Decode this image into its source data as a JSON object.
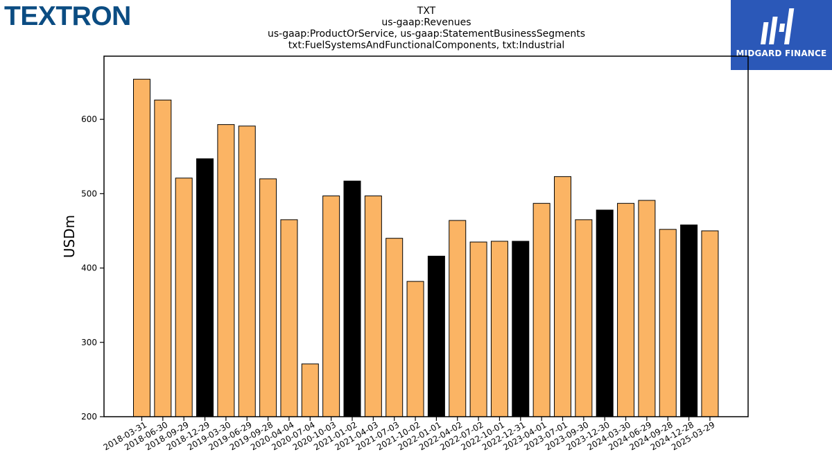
{
  "logos": {
    "left": "TEXTRON",
    "right": "MIDGARD FINANCE"
  },
  "colors": {
    "bar_default": "#fbb464",
    "bar_highlight": "#000000",
    "logo_left": "#0b4c82",
    "logo_right_bg": "#2b58b8"
  },
  "chart_data": {
    "type": "bar",
    "title": [
      "TXT",
      "us-gaap:Revenues",
      "us-gaap:ProductOrService, us-gaap:StatementBusinessSegments",
      "txt:FuelSystemsAndFunctionalComponents, txt:Industrial"
    ],
    "xlabel": "",
    "ylabel": "USDm",
    "ylim": [
      200,
      685
    ],
    "yticks": [
      200,
      300,
      400,
      500,
      600
    ],
    "grid": false,
    "categories": [
      "2018-03-31",
      "2018-06-30",
      "2018-09-29",
      "2018-12-29",
      "2019-03-30",
      "2019-06-29",
      "2019-09-28",
      "2020-04-04",
      "2020-07-04",
      "2020-10-03",
      "2021-01-02",
      "2021-04-03",
      "2021-07-03",
      "2021-10-02",
      "2022-01-01",
      "2022-04-02",
      "2022-07-02",
      "2022-10-01",
      "2022-12-31",
      "2023-04-01",
      "2023-07-01",
      "2023-09-30",
      "2023-12-30",
      "2024-03-30",
      "2024-06-29",
      "2024-09-28",
      "2024-12-28",
      "2025-03-29"
    ],
    "values": [
      654,
      626,
      521,
      547,
      593,
      591,
      520,
      465,
      271,
      497,
      517,
      497,
      440,
      382,
      416,
      464,
      435,
      436,
      436,
      487,
      523,
      465,
      478,
      487,
      491,
      452,
      458,
      450
    ],
    "highlight": [
      false,
      false,
      false,
      true,
      false,
      false,
      false,
      false,
      false,
      false,
      true,
      false,
      false,
      false,
      true,
      false,
      false,
      false,
      true,
      false,
      false,
      false,
      true,
      false,
      false,
      false,
      true,
      false
    ]
  }
}
